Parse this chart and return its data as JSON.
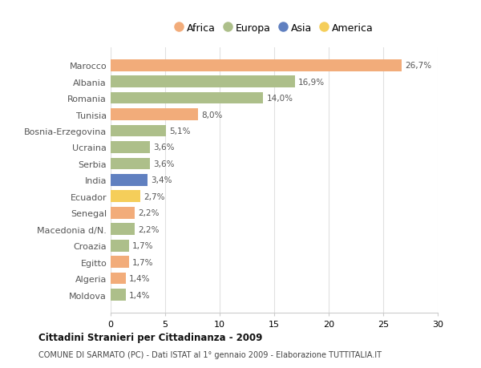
{
  "countries": [
    "Marocco",
    "Albania",
    "Romania",
    "Tunisia",
    "Bosnia-Erzegovina",
    "Ucraina",
    "Serbia",
    "India",
    "Ecuador",
    "Senegal",
    "Macedonia d/N.",
    "Croazia",
    "Egitto",
    "Algeria",
    "Moldova"
  ],
  "values": [
    26.7,
    16.9,
    14.0,
    8.0,
    5.1,
    3.6,
    3.6,
    3.4,
    2.7,
    2.2,
    2.2,
    1.7,
    1.7,
    1.4,
    1.4
  ],
  "continents": [
    "Africa",
    "Europa",
    "Europa",
    "Africa",
    "Europa",
    "Europa",
    "Europa",
    "Asia",
    "America",
    "Africa",
    "Europa",
    "Europa",
    "Africa",
    "Africa",
    "Europa"
  ],
  "colors": {
    "Africa": "#F2AC7A",
    "Europa": "#ADBF8A",
    "Asia": "#6080C0",
    "America": "#F5CE5A"
  },
  "xlim": [
    0,
    30
  ],
  "xticks": [
    0,
    5,
    10,
    15,
    20,
    25,
    30
  ],
  "title": "Cittadini Stranieri per Cittadinanza - 2009",
  "subtitle": "COMUNE DI SARMATO (PC) - Dati ISTAT al 1° gennaio 2009 - Elaborazione TUTTITALIA.IT",
  "background_color": "#ffffff",
  "grid_color": "#e0e0e0",
  "label_fontsize": 7.5,
  "tick_fontsize": 8
}
